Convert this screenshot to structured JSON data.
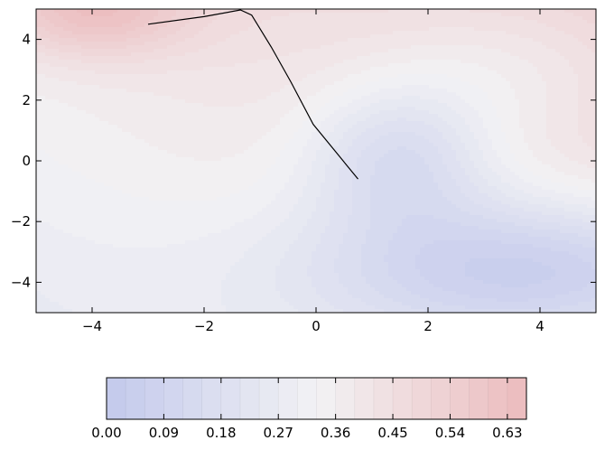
{
  "chart_data": {
    "type": "contour",
    "title": "",
    "xlabel": "",
    "ylabel": "",
    "xlim": [
      -5,
      5
    ],
    "ylim": [
      -5,
      5
    ],
    "grid": false,
    "x_ticks": [
      "−4",
      "−2",
      "0",
      "2",
      "4"
    ],
    "x_tick_values": [
      -4,
      -2,
      0,
      2,
      4
    ],
    "y_ticks": [
      "4",
      "2",
      "0",
      "−2",
      "−4"
    ],
    "y_tick_values": [
      4,
      2,
      0,
      -2,
      -4
    ],
    "colormap": "coolwarm",
    "colormap_endpoints": {
      "low": "#c3c9ec",
      "mid": "#f2f2f4",
      "high": "#ecbcbd"
    },
    "levels": [
      0.0,
      0.03,
      0.06,
      0.09,
      0.12,
      0.15,
      0.18,
      0.21,
      0.24,
      0.27,
      0.3,
      0.33,
      0.36,
      0.39,
      0.42,
      0.45,
      0.48,
      0.51,
      0.54,
      0.57,
      0.6,
      0.63,
      0.66
    ],
    "colorbar": {
      "orientation": "horizontal",
      "position": "bottom",
      "tick_values": [
        0.0,
        0.09,
        0.18,
        0.27,
        0.36,
        0.45,
        0.54,
        0.63
      ],
      "tick_labels": [
        "0.00",
        "0.09",
        "0.18",
        "0.27",
        "0.36",
        "0.45",
        "0.54",
        "0.63"
      ]
    },
    "trajectory": {
      "color": "#000000",
      "points": [
        [
          -3.0,
          4.5
        ],
        [
          -2.0,
          4.75
        ],
        [
          -1.35,
          4.97
        ],
        [
          -1.15,
          4.8
        ],
        [
          -0.8,
          3.75
        ],
        [
          -0.45,
          2.6
        ],
        [
          -0.05,
          1.2
        ],
        [
          0.35,
          0.3
        ],
        [
          0.75,
          -0.6
        ]
      ]
    }
  }
}
